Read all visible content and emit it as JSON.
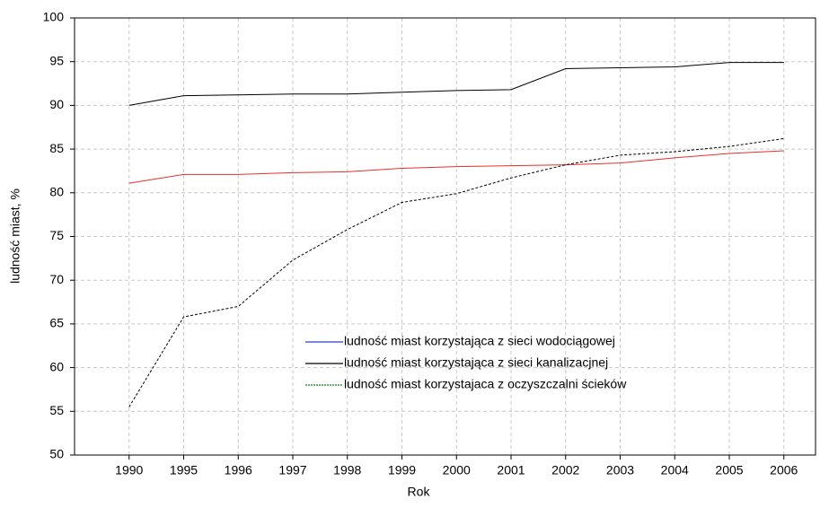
{
  "chart_data": {
    "type": "line",
    "x_label": "Rok",
    "y_label": "ludność miast, %",
    "categories": [
      "1990",
      "1995",
      "1996",
      "1997",
      "1998",
      "1999",
      "2000",
      "2001",
      "2002",
      "2003",
      "2004",
      "2005",
      "2006"
    ],
    "series": [
      {
        "name": "ludność miast korzystająca z sieci wodociągowej",
        "color": "#e8302a",
        "legend_color": "#2a3fd0",
        "dashed": false,
        "values": [
          81.1,
          82.1,
          82.1,
          82.3,
          82.4,
          82.8,
          83.0,
          83.1,
          83.2,
          83.4,
          84.0,
          84.5,
          84.8
        ]
      },
      {
        "name": "ludność miast korzystająca z sieci kanalizacjnej",
        "color": "#000000",
        "legend_color": "#000000",
        "dashed": false,
        "values": [
          90.0,
          91.1,
          91.2,
          91.3,
          91.3,
          91.5,
          91.7,
          91.8,
          94.2,
          94.3,
          94.4,
          94.9,
          94.9
        ]
      },
      {
        "name": "ludność miast korzystajaca z oczyszczalni ścieków",
        "color": "#000000",
        "legend_color": "#1a7a1a",
        "dashed": true,
        "values": [
          55.5,
          65.8,
          67.0,
          72.3,
          75.8,
          78.9,
          79.9,
          81.7,
          83.2,
          84.3,
          84.7,
          85.3,
          86.2
        ]
      }
    ],
    "ylim": [
      50,
      100
    ],
    "yticks": [
      50,
      55,
      60,
      65,
      70,
      75,
      80,
      85,
      90,
      95,
      100
    ],
    "grid": true
  }
}
